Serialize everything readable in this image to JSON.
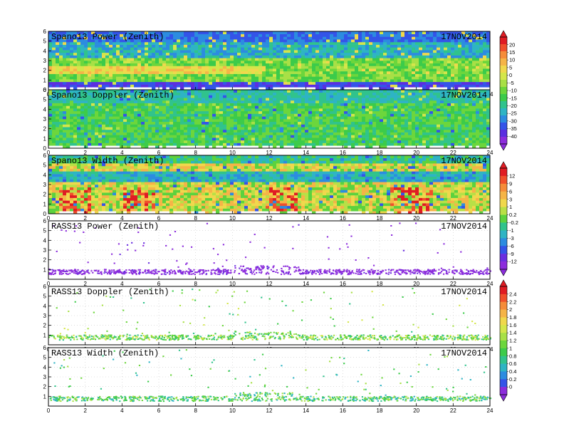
{
  "chart_data": [
    {
      "type": "heatmap",
      "title": "Spano13 Power (Zenith)",
      "date": "17NOV2014",
      "x_ticks": [
        "0",
        "2",
        "4",
        "6",
        "8",
        "10",
        "12",
        "14",
        "16",
        "18",
        "20",
        "22",
        "24"
      ],
      "y_ticks": [
        "0",
        "1",
        "2",
        "3",
        "4",
        "5",
        "6"
      ],
      "xlim": [
        0,
        24
      ],
      "ylim": [
        0,
        6
      ],
      "grid": false,
      "colorbar": "A"
    },
    {
      "type": "heatmap",
      "title": "Spano13 Doppler (Zenith)",
      "date": "17NOV2014",
      "x_ticks": [
        "0",
        "2",
        "4",
        "6",
        "8",
        "10",
        "12",
        "14",
        "16",
        "18",
        "20",
        "22",
        "24"
      ],
      "y_ticks": [
        "0",
        "1",
        "2",
        "3",
        "4",
        "5",
        "6"
      ],
      "xlim": [
        0,
        24
      ],
      "ylim": [
        0,
        6
      ],
      "grid": false,
      "colorbar": "A"
    },
    {
      "type": "heatmap",
      "title": "Spano13 Width (Zenith)",
      "date": "17NOV2014",
      "x_ticks": [
        "0",
        "2",
        "4",
        "6",
        "8",
        "10",
        "12",
        "14",
        "16",
        "18",
        "20",
        "22",
        "24"
      ],
      "y_ticks": [
        "0",
        "1",
        "2",
        "3",
        "4",
        "5",
        "6"
      ],
      "xlim": [
        0,
        24
      ],
      "ylim": [
        0,
        6
      ],
      "grid": false,
      "colorbar": "B"
    },
    {
      "type": "scatter",
      "title": "RASS13 Power (Zenith)",
      "date": "17NOV2014",
      "x_ticks": [
        "0",
        "2",
        "4",
        "6",
        "8",
        "10",
        "12",
        "14",
        "16",
        "18",
        "20",
        "22",
        "24"
      ],
      "y_ticks": [
        "1",
        "2",
        "3",
        "4",
        "5",
        "6"
      ],
      "xlim": [
        0,
        24
      ],
      "ylim": [
        0,
        6
      ],
      "grid": true,
      "colorbar": "B"
    },
    {
      "type": "scatter",
      "title": "RASS13 Doppler (Zenith)",
      "date": "17NOV2014",
      "x_ticks": [
        "0",
        "2",
        "4",
        "6",
        "8",
        "10",
        "12",
        "14",
        "16",
        "18",
        "20",
        "22",
        "24"
      ],
      "y_ticks": [
        "1",
        "2",
        "3",
        "4",
        "5",
        "6"
      ],
      "xlim": [
        0,
        24
      ],
      "ylim": [
        0,
        6
      ],
      "grid": true,
      "colorbar": "C"
    },
    {
      "type": "scatter",
      "title": "RASS13 Width (Zenith)",
      "date": "17NOV2014",
      "x_ticks": [
        "0",
        "2",
        "4",
        "6",
        "8",
        "10",
        "12",
        "14",
        "16",
        "18",
        "20",
        "22",
        "24"
      ],
      "y_ticks": [
        "1",
        "2",
        "3",
        "4",
        "5",
        "6"
      ],
      "xlim": [
        0,
        24
      ],
      "ylim": [
        0,
        6
      ],
      "grid": true,
      "colorbar": "C"
    }
  ],
  "colorbars": {
    "A": {
      "labels": [
        "20",
        "15",
        "10",
        "5",
        "0",
        "-5",
        "-10",
        "-15",
        "-20",
        "-25",
        "-30",
        "-35",
        "-40"
      ],
      "colors": [
        "#e01c24",
        "#f0502c",
        "#f58c3a",
        "#f5b447",
        "#f0d84c",
        "#d4e64a",
        "#a8e046",
        "#6cd63c",
        "#3ccb4a",
        "#30c38c",
        "#2eb4c4",
        "#2c8ce0",
        "#3454e8",
        "#5a2ee0",
        "#8c2cdc"
      ]
    },
    "B": {
      "labels": [
        "12",
        "9",
        "6",
        "3",
        "1",
        "0.2",
        "-0.2",
        "-1",
        "-3",
        "-6",
        "-9",
        "-12"
      ],
      "colors": [
        "#e01c24",
        "#f0502c",
        "#f58c3a",
        "#f5b447",
        "#f0d84c",
        "#b8e046",
        "#5cd23e",
        "#30c38c",
        "#2eb4c4",
        "#2c8ce0",
        "#3454e8",
        "#6a2ee0",
        "#8c2cdc"
      ]
    },
    "C": {
      "labels": [
        "2.4",
        "2.2",
        "2",
        "1.8",
        "1.6",
        "1.4",
        "1.2",
        "1",
        "0.8",
        "0.6",
        "0.4",
        "0.2",
        "0"
      ],
      "colors": [
        "#e01c24",
        "#f0502c",
        "#f58c3a",
        "#f5b447",
        "#f0d84c",
        "#d4e64a",
        "#a8e046",
        "#6cd63c",
        "#3ccb4a",
        "#30c38c",
        "#2eb4c4",
        "#2c8ce0",
        "#3454e8",
        "#8c2cdc"
      ]
    }
  }
}
